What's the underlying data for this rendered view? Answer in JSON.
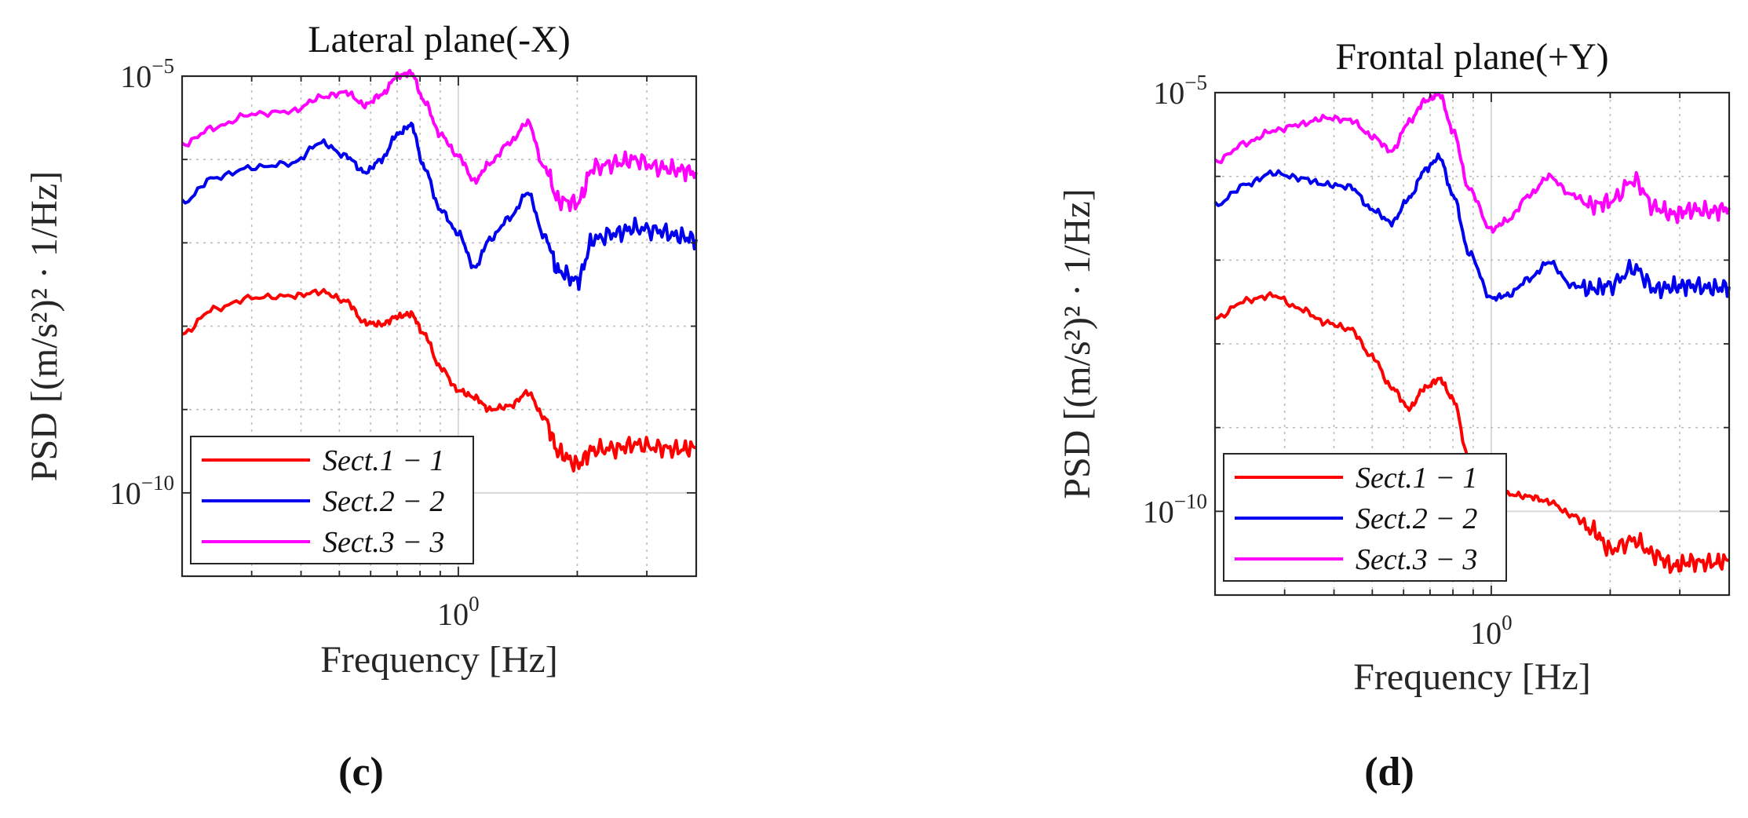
{
  "chart_data": [
    {
      "type": "line",
      "panel_label": "(c)",
      "title": "Lateral plane(-X)",
      "xlabel": "Frequency [Hz]",
      "ylabel": "PSD [(m/s²)² · 1/Hz]",
      "xscale": "log",
      "yscale": "log",
      "xlim": [
        0.2,
        4.0
      ],
      "ylim": [
        1e-11,
        1e-05
      ],
      "xticks": [
        {
          "value": 1.0,
          "base": "10",
          "exp": "0"
        }
      ],
      "yticks": [
        {
          "value": 1e-05,
          "base": "10",
          "exp": "−5"
        },
        {
          "value": 1e-10,
          "base": "10",
          "exp": "−10"
        }
      ],
      "grid": true,
      "legend_position": "bottom-left",
      "series": [
        {
          "name": "Sect.1 − 1",
          "color": "#ff0000",
          "x": [
            0.2,
            0.24,
            0.3,
            0.38,
            0.45,
            0.52,
            0.58,
            0.64,
            0.7,
            0.76,
            0.82,
            0.9,
            1.0,
            1.1,
            1.2,
            1.35,
            1.5,
            1.65,
            1.8,
            2.0,
            2.2,
            2.5,
            2.8,
            3.2,
            3.6,
            4.0
          ],
          "y": [
            8e-09,
            1.6e-08,
            2.2e-08,
            2.3e-08,
            2.6e-08,
            2e-08,
            1.1e-08,
            1.05e-08,
            1.3e-08,
            1.4e-08,
            8e-09,
            3.2e-09,
            1.7e-09,
            1.4e-09,
            1e-09,
            1.1e-09,
            1.6e-09,
            8e-10,
            3e-10,
            2.2e-10,
            3.3e-10,
            3.4e-10,
            3.8e-10,
            3.5e-10,
            3.3e-10,
            3.5e-10
          ]
        },
        {
          "name": "Sect.2 − 2",
          "color": "#0000ee",
          "x": [
            0.2,
            0.24,
            0.3,
            0.38,
            0.45,
            0.52,
            0.58,
            0.64,
            0.7,
            0.76,
            0.82,
            0.9,
            1.0,
            1.1,
            1.2,
            1.35,
            1.5,
            1.65,
            1.8,
            2.0,
            2.2,
            2.5,
            2.8,
            3.2,
            3.6,
            4.0
          ],
          "y": [
            3e-07,
            6e-07,
            8e-07,
            9e-07,
            1.6e-06,
            1.1e-06,
            7e-07,
            1e-06,
            2e-06,
            2.6e-06,
            8e-07,
            2.5e-07,
            1.3e-07,
            5e-08,
            1.1e-07,
            2e-07,
            4e-07,
            1.2e-07,
            4.5e-08,
            3.5e-08,
            1.1e-07,
            1.3e-07,
            1.5e-07,
            1.4e-07,
            1.2e-07,
            1.1e-07
          ]
        },
        {
          "name": "Sect.3 − 3",
          "color": "#ff00ff",
          "x": [
            0.2,
            0.24,
            0.3,
            0.38,
            0.45,
            0.52,
            0.58,
            0.64,
            0.7,
            0.76,
            0.82,
            0.9,
            1.0,
            1.1,
            1.2,
            1.35,
            1.5,
            1.65,
            1.8,
            2.0,
            2.2,
            2.5,
            2.8,
            3.2,
            3.6,
            4.0
          ],
          "y": [
            1.5e-06,
            2.4e-06,
            3.5e-06,
            3.8e-06,
            5.6e-06,
            6.4e-06,
            4.5e-06,
            6e-06,
            1e-05,
            1.1e-05,
            5e-06,
            2e-06,
            1.1e-06,
            5.5e-07,
            9e-07,
            1.6e-06,
            2.8e-06,
            8e-07,
            3.2e-07,
            3e-07,
            8e-07,
            9e-07,
            1e-06,
            8e-07,
            7.5e-07,
            7e-07
          ]
        }
      ]
    },
    {
      "type": "line",
      "panel_label": "(d)",
      "title": "Frontal plane(+Y)",
      "xlabel": "Frequency [Hz]",
      "ylabel": "PSD [(m/s²)² · 1/Hz]",
      "xscale": "log",
      "yscale": "log",
      "xlim": [
        0.2,
        4.0
      ],
      "ylim": [
        1e-11,
        1e-05
      ],
      "xticks": [
        {
          "value": 1.0,
          "base": "10",
          "exp": "0"
        }
      ],
      "yticks": [
        {
          "value": 1e-05,
          "base": "10",
          "exp": "−5"
        },
        {
          "value": 1e-10,
          "base": "10",
          "exp": "−10"
        }
      ],
      "grid": true,
      "legend_position": "bottom-left",
      "series": [
        {
          "name": "Sect.1 − 1",
          "color": "#ff0000",
          "x": [
            0.2,
            0.24,
            0.28,
            0.33,
            0.38,
            0.44,
            0.5,
            0.56,
            0.62,
            0.68,
            0.74,
            0.8,
            0.88,
            1.0,
            1.1,
            1.25,
            1.4,
            1.6,
            1.8,
            2.0,
            2.3,
            2.6,
            2.9,
            3.2,
            3.6,
            4.0
          ],
          "y": [
            2e-08,
            3.3e-08,
            3.8e-08,
            2.6e-08,
            1.8e-08,
            1.5e-08,
            7e-09,
            3e-09,
            1.7e-09,
            3e-09,
            3.8e-09,
            2.2e-09,
            4e-10,
            2.5e-10,
            1.6e-10,
            1.5e-10,
            1.3e-10,
            9e-11,
            6e-11,
            3.5e-11,
            4.5e-11,
            3e-11,
            2.2e-11,
            2.5e-11,
            2.4e-11,
            2.6e-11
          ]
        },
        {
          "name": "Sect.2 − 2",
          "color": "#0000ee",
          "x": [
            0.2,
            0.24,
            0.28,
            0.33,
            0.38,
            0.44,
            0.5,
            0.56,
            0.62,
            0.68,
            0.74,
            0.8,
            0.88,
            1.0,
            1.1,
            1.25,
            1.4,
            1.6,
            1.8,
            2.0,
            2.3,
            2.6,
            2.9,
            3.2,
            3.6,
            4.0
          ],
          "y": [
            4.5e-07,
            8e-07,
            1.1e-06,
            9.5e-07,
            8e-07,
            7.5e-07,
            4e-07,
            2.8e-07,
            5.5e-07,
            1.2e-06,
            1.7e-06,
            6e-07,
            1.2e-07,
            3.5e-08,
            3.8e-08,
            6e-08,
            9.5e-08,
            5e-08,
            4.5e-08,
            5e-08,
            8e-08,
            4.5e-08,
            4.8e-08,
            5e-08,
            4.6e-08,
            4.8e-08
          ]
        },
        {
          "name": "Sect.3 − 3",
          "color": "#ff00ff",
          "x": [
            0.2,
            0.24,
            0.28,
            0.33,
            0.38,
            0.44,
            0.5,
            0.56,
            0.62,
            0.68,
            0.74,
            0.8,
            0.88,
            1.0,
            1.1,
            1.25,
            1.4,
            1.6,
            1.8,
            2.0,
            2.3,
            2.6,
            2.9,
            3.2,
            3.6,
            4.0
          ],
          "y": [
            1.5e-06,
            2.5e-06,
            3.5e-06,
            4.2e-06,
            5e-06,
            4.7e-06,
            3e-06,
            2e-06,
            4.5e-06,
            8e-06,
            9.5e-06,
            3.5e-06,
            7e-07,
            2.3e-07,
            3e-07,
            6e-07,
            1e-06,
            6e-07,
            4.5e-07,
            5e-07,
            9e-07,
            4.2e-07,
            3.5e-07,
            4e-07,
            3.8e-07,
            4.2e-07
          ]
        }
      ]
    }
  ]
}
